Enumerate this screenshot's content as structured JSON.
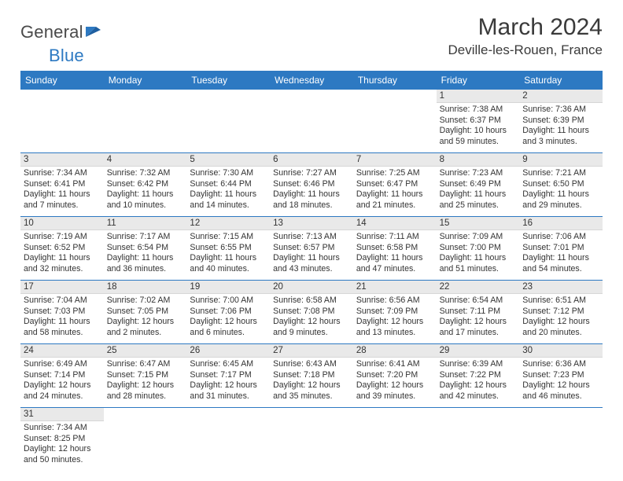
{
  "brand": {
    "part1": "General",
    "part2": "Blue"
  },
  "title": {
    "month": "March 2024",
    "location": "Deville-les-Rouen, France"
  },
  "colors": {
    "header_bg": "#2d79c2",
    "header_text": "#ffffff",
    "daynum_bg": "#e9e9e9",
    "week_border": "#2d79c2",
    "text": "#333333",
    "page_bg": "#ffffff"
  },
  "daynames": [
    "Sunday",
    "Monday",
    "Tuesday",
    "Wednesday",
    "Thursday",
    "Friday",
    "Saturday"
  ],
  "weeks": [
    [
      {
        "day": "",
        "sunrise": "",
        "sunset": "",
        "daylight": ""
      },
      {
        "day": "",
        "sunrise": "",
        "sunset": "",
        "daylight": ""
      },
      {
        "day": "",
        "sunrise": "",
        "sunset": "",
        "daylight": ""
      },
      {
        "day": "",
        "sunrise": "",
        "sunset": "",
        "daylight": ""
      },
      {
        "day": "",
        "sunrise": "",
        "sunset": "",
        "daylight": ""
      },
      {
        "day": "1",
        "sunrise": "Sunrise: 7:38 AM",
        "sunset": "Sunset: 6:37 PM",
        "daylight": "Daylight: 10 hours and 59 minutes."
      },
      {
        "day": "2",
        "sunrise": "Sunrise: 7:36 AM",
        "sunset": "Sunset: 6:39 PM",
        "daylight": "Daylight: 11 hours and 3 minutes."
      }
    ],
    [
      {
        "day": "3",
        "sunrise": "Sunrise: 7:34 AM",
        "sunset": "Sunset: 6:41 PM",
        "daylight": "Daylight: 11 hours and 7 minutes."
      },
      {
        "day": "4",
        "sunrise": "Sunrise: 7:32 AM",
        "sunset": "Sunset: 6:42 PM",
        "daylight": "Daylight: 11 hours and 10 minutes."
      },
      {
        "day": "5",
        "sunrise": "Sunrise: 7:30 AM",
        "sunset": "Sunset: 6:44 PM",
        "daylight": "Daylight: 11 hours and 14 minutes."
      },
      {
        "day": "6",
        "sunrise": "Sunrise: 7:27 AM",
        "sunset": "Sunset: 6:46 PM",
        "daylight": "Daylight: 11 hours and 18 minutes."
      },
      {
        "day": "7",
        "sunrise": "Sunrise: 7:25 AM",
        "sunset": "Sunset: 6:47 PM",
        "daylight": "Daylight: 11 hours and 21 minutes."
      },
      {
        "day": "8",
        "sunrise": "Sunrise: 7:23 AM",
        "sunset": "Sunset: 6:49 PM",
        "daylight": "Daylight: 11 hours and 25 minutes."
      },
      {
        "day": "9",
        "sunrise": "Sunrise: 7:21 AM",
        "sunset": "Sunset: 6:50 PM",
        "daylight": "Daylight: 11 hours and 29 minutes."
      }
    ],
    [
      {
        "day": "10",
        "sunrise": "Sunrise: 7:19 AM",
        "sunset": "Sunset: 6:52 PM",
        "daylight": "Daylight: 11 hours and 32 minutes."
      },
      {
        "day": "11",
        "sunrise": "Sunrise: 7:17 AM",
        "sunset": "Sunset: 6:54 PM",
        "daylight": "Daylight: 11 hours and 36 minutes."
      },
      {
        "day": "12",
        "sunrise": "Sunrise: 7:15 AM",
        "sunset": "Sunset: 6:55 PM",
        "daylight": "Daylight: 11 hours and 40 minutes."
      },
      {
        "day": "13",
        "sunrise": "Sunrise: 7:13 AM",
        "sunset": "Sunset: 6:57 PM",
        "daylight": "Daylight: 11 hours and 43 minutes."
      },
      {
        "day": "14",
        "sunrise": "Sunrise: 7:11 AM",
        "sunset": "Sunset: 6:58 PM",
        "daylight": "Daylight: 11 hours and 47 minutes."
      },
      {
        "day": "15",
        "sunrise": "Sunrise: 7:09 AM",
        "sunset": "Sunset: 7:00 PM",
        "daylight": "Daylight: 11 hours and 51 minutes."
      },
      {
        "day": "16",
        "sunrise": "Sunrise: 7:06 AM",
        "sunset": "Sunset: 7:01 PM",
        "daylight": "Daylight: 11 hours and 54 minutes."
      }
    ],
    [
      {
        "day": "17",
        "sunrise": "Sunrise: 7:04 AM",
        "sunset": "Sunset: 7:03 PM",
        "daylight": "Daylight: 11 hours and 58 minutes."
      },
      {
        "day": "18",
        "sunrise": "Sunrise: 7:02 AM",
        "sunset": "Sunset: 7:05 PM",
        "daylight": "Daylight: 12 hours and 2 minutes."
      },
      {
        "day": "19",
        "sunrise": "Sunrise: 7:00 AM",
        "sunset": "Sunset: 7:06 PM",
        "daylight": "Daylight: 12 hours and 6 minutes."
      },
      {
        "day": "20",
        "sunrise": "Sunrise: 6:58 AM",
        "sunset": "Sunset: 7:08 PM",
        "daylight": "Daylight: 12 hours and 9 minutes."
      },
      {
        "day": "21",
        "sunrise": "Sunrise: 6:56 AM",
        "sunset": "Sunset: 7:09 PM",
        "daylight": "Daylight: 12 hours and 13 minutes."
      },
      {
        "day": "22",
        "sunrise": "Sunrise: 6:54 AM",
        "sunset": "Sunset: 7:11 PM",
        "daylight": "Daylight: 12 hours and 17 minutes."
      },
      {
        "day": "23",
        "sunrise": "Sunrise: 6:51 AM",
        "sunset": "Sunset: 7:12 PM",
        "daylight": "Daylight: 12 hours and 20 minutes."
      }
    ],
    [
      {
        "day": "24",
        "sunrise": "Sunrise: 6:49 AM",
        "sunset": "Sunset: 7:14 PM",
        "daylight": "Daylight: 12 hours and 24 minutes."
      },
      {
        "day": "25",
        "sunrise": "Sunrise: 6:47 AM",
        "sunset": "Sunset: 7:15 PM",
        "daylight": "Daylight: 12 hours and 28 minutes."
      },
      {
        "day": "26",
        "sunrise": "Sunrise: 6:45 AM",
        "sunset": "Sunset: 7:17 PM",
        "daylight": "Daylight: 12 hours and 31 minutes."
      },
      {
        "day": "27",
        "sunrise": "Sunrise: 6:43 AM",
        "sunset": "Sunset: 7:18 PM",
        "daylight": "Daylight: 12 hours and 35 minutes."
      },
      {
        "day": "28",
        "sunrise": "Sunrise: 6:41 AM",
        "sunset": "Sunset: 7:20 PM",
        "daylight": "Daylight: 12 hours and 39 minutes."
      },
      {
        "day": "29",
        "sunrise": "Sunrise: 6:39 AM",
        "sunset": "Sunset: 7:22 PM",
        "daylight": "Daylight: 12 hours and 42 minutes."
      },
      {
        "day": "30",
        "sunrise": "Sunrise: 6:36 AM",
        "sunset": "Sunset: 7:23 PM",
        "daylight": "Daylight: 12 hours and 46 minutes."
      }
    ],
    [
      {
        "day": "31",
        "sunrise": "Sunrise: 7:34 AM",
        "sunset": "Sunset: 8:25 PM",
        "daylight": "Daylight: 12 hours and 50 minutes."
      },
      {
        "day": "",
        "sunrise": "",
        "sunset": "",
        "daylight": ""
      },
      {
        "day": "",
        "sunrise": "",
        "sunset": "",
        "daylight": ""
      },
      {
        "day": "",
        "sunrise": "",
        "sunset": "",
        "daylight": ""
      },
      {
        "day": "",
        "sunrise": "",
        "sunset": "",
        "daylight": ""
      },
      {
        "day": "",
        "sunrise": "",
        "sunset": "",
        "daylight": ""
      },
      {
        "day": "",
        "sunrise": "",
        "sunset": "",
        "daylight": ""
      }
    ]
  ]
}
